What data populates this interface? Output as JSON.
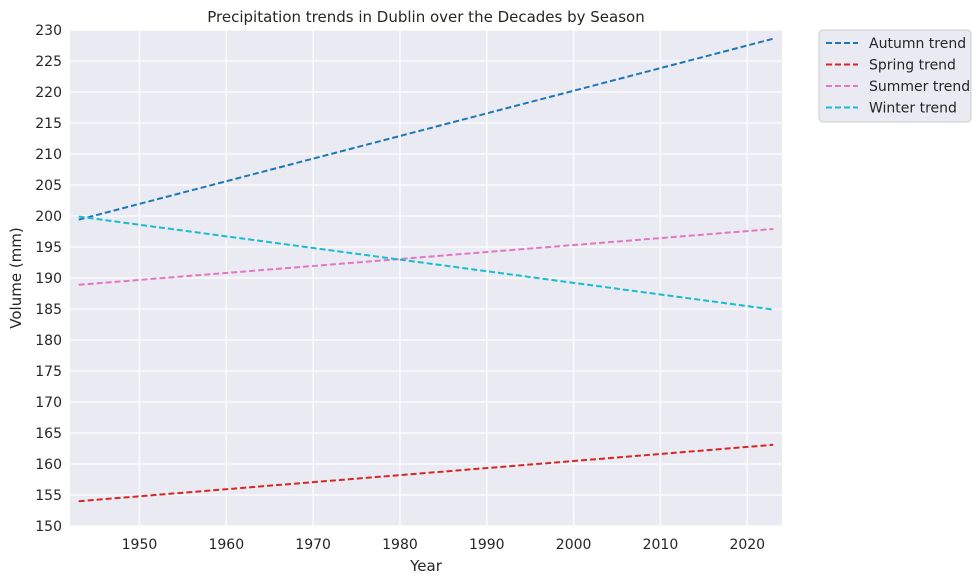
{
  "chart_data": {
    "type": "line",
    "title": "Precipitation trends in Dublin over the Decades by Season",
    "xlabel": "Year",
    "ylabel": "Volume (mm)",
    "xlim": [
      1942,
      2024
    ],
    "ylim": [
      150,
      230
    ],
    "x_ticks": [
      1950,
      1960,
      1970,
      1980,
      1990,
      2000,
      2010,
      2020
    ],
    "y_ticks": [
      150,
      155,
      160,
      165,
      170,
      175,
      180,
      185,
      190,
      195,
      200,
      205,
      210,
      215,
      220,
      225,
      230
    ],
    "grid": true,
    "legend_position": "outside-top-right",
    "series": [
      {
        "name": "Autumn trend",
        "color": "#1f77b4",
        "style": "dashed",
        "x": [
          1943,
          2023
        ],
        "values": [
          199.4,
          228.6
        ]
      },
      {
        "name": "Spring trend",
        "color": "#d62728",
        "style": "dashed",
        "x": [
          1943,
          2023
        ],
        "values": [
          154.0,
          163.1
        ]
      },
      {
        "name": "Summer trend",
        "color": "#e377c2",
        "style": "dashed",
        "x": [
          1943,
          2023
        ],
        "values": [
          188.9,
          197.9
        ]
      },
      {
        "name": "Winter trend",
        "color": "#17becf",
        "style": "dashed",
        "x": [
          1943,
          2023
        ],
        "values": [
          199.9,
          184.9
        ]
      }
    ]
  }
}
